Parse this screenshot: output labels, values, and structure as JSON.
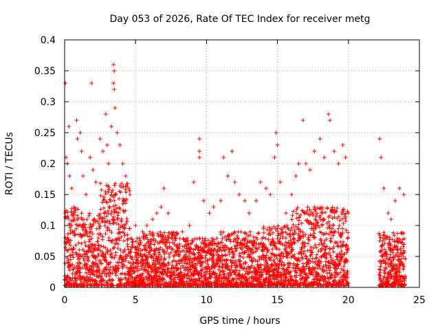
{
  "chart_data": {
    "type": "scatter",
    "title": "Day 053 of 2026, Rate Of TEC Index for receiver metg",
    "xlabel": "GPS time / hours",
    "ylabel": "ROTI / TECUs",
    "xlim": [
      0,
      25
    ],
    "ylim": [
      0,
      0.4
    ],
    "xticks": [
      "0",
      "5",
      "10",
      "15",
      "20",
      "25"
    ],
    "yticks": [
      "0",
      "0.05",
      "0.1",
      "0.15",
      "0.2",
      "0.25",
      "0.3",
      "0.35",
      "0.4"
    ],
    "grid": true,
    "marker": "+",
    "color": "#ff0000",
    "data_gap_hours": [
      20.0,
      22.1
    ],
    "series": [
      {
        "points": [
          [
            0.05,
            0.33
          ],
          [
            0.1,
            0.21
          ],
          [
            0.2,
            0.2
          ],
          [
            0.3,
            0.26
          ],
          [
            0.35,
            0.18
          ],
          [
            0.5,
            0.16
          ],
          [
            0.6,
            0.12
          ],
          [
            0.85,
            0.27
          ],
          [
            0.9,
            0.24
          ],
          [
            1.1,
            0.25
          ],
          [
            1.2,
            0.22
          ],
          [
            1.3,
            0.18
          ],
          [
            1.5,
            0.15
          ],
          [
            1.8,
            0.21
          ],
          [
            1.9,
            0.33
          ],
          [
            2.0,
            0.19
          ],
          [
            2.2,
            0.17
          ],
          [
            2.5,
            0.24
          ],
          [
            2.7,
            0.22
          ],
          [
            2.9,
            0.28
          ],
          [
            3.0,
            0.23
          ],
          [
            3.1,
            0.2
          ],
          [
            3.3,
            0.26
          ],
          [
            3.45,
            0.36
          ],
          [
            3.5,
            0.35
          ],
          [
            3.45,
            0.33
          ],
          [
            3.5,
            0.32
          ],
          [
            3.55,
            0.29
          ],
          [
            3.7,
            0.25
          ],
          [
            3.9,
            0.23
          ],
          [
            4.1,
            0.2
          ],
          [
            4.3,
            0.18
          ],
          [
            4.6,
            0.15
          ],
          [
            5.0,
            0.1
          ],
          [
            5.5,
            0.09
          ],
          [
            5.8,
            0.1
          ],
          [
            6.2,
            0.11
          ],
          [
            6.5,
            0.12
          ],
          [
            6.8,
            0.13
          ],
          [
            7.0,
            0.16
          ],
          [
            7.3,
            0.12
          ],
          [
            7.8,
            0.08
          ],
          [
            8.3,
            0.09
          ],
          [
            8.8,
            0.1
          ],
          [
            9.1,
            0.17
          ],
          [
            9.5,
            0.24
          ],
          [
            9.5,
            0.22
          ],
          [
            9.5,
            0.21
          ],
          [
            9.8,
            0.14
          ],
          [
            10.2,
            0.12
          ],
          [
            10.5,
            0.13
          ],
          [
            11.0,
            0.14
          ],
          [
            11.2,
            0.21
          ],
          [
            11.5,
            0.18
          ],
          [
            11.8,
            0.22
          ],
          [
            12.0,
            0.17
          ],
          [
            12.3,
            0.15
          ],
          [
            12.7,
            0.14
          ],
          [
            13.0,
            0.12
          ],
          [
            13.5,
            0.14
          ],
          [
            13.8,
            0.17
          ],
          [
            14.2,
            0.16
          ],
          [
            14.5,
            0.15
          ],
          [
            14.8,
            0.21
          ],
          [
            14.9,
            0.25
          ],
          [
            15.0,
            0.23
          ],
          [
            15.2,
            0.17
          ],
          [
            15.6,
            0.12
          ],
          [
            16.0,
            0.15
          ],
          [
            16.3,
            0.18
          ],
          [
            16.5,
            0.2
          ],
          [
            16.8,
            0.27
          ],
          [
            17.0,
            0.2
          ],
          [
            17.3,
            0.19
          ],
          [
            17.6,
            0.22
          ],
          [
            18.0,
            0.24
          ],
          [
            18.3,
            0.21
          ],
          [
            18.6,
            0.28
          ],
          [
            18.7,
            0.27
          ],
          [
            19.0,
            0.22
          ],
          [
            19.3,
            0.2
          ],
          [
            19.6,
            0.23
          ],
          [
            19.8,
            0.21
          ],
          [
            20.0,
            0.12
          ],
          [
            22.2,
            0.24
          ],
          [
            22.3,
            0.21
          ],
          [
            22.5,
            0.16
          ],
          [
            22.8,
            0.12
          ],
          [
            23.0,
            0.11
          ],
          [
            23.3,
            0.14
          ],
          [
            23.6,
            0.16
          ],
          [
            23.9,
            0.15
          ]
        ]
      }
    ]
  }
}
